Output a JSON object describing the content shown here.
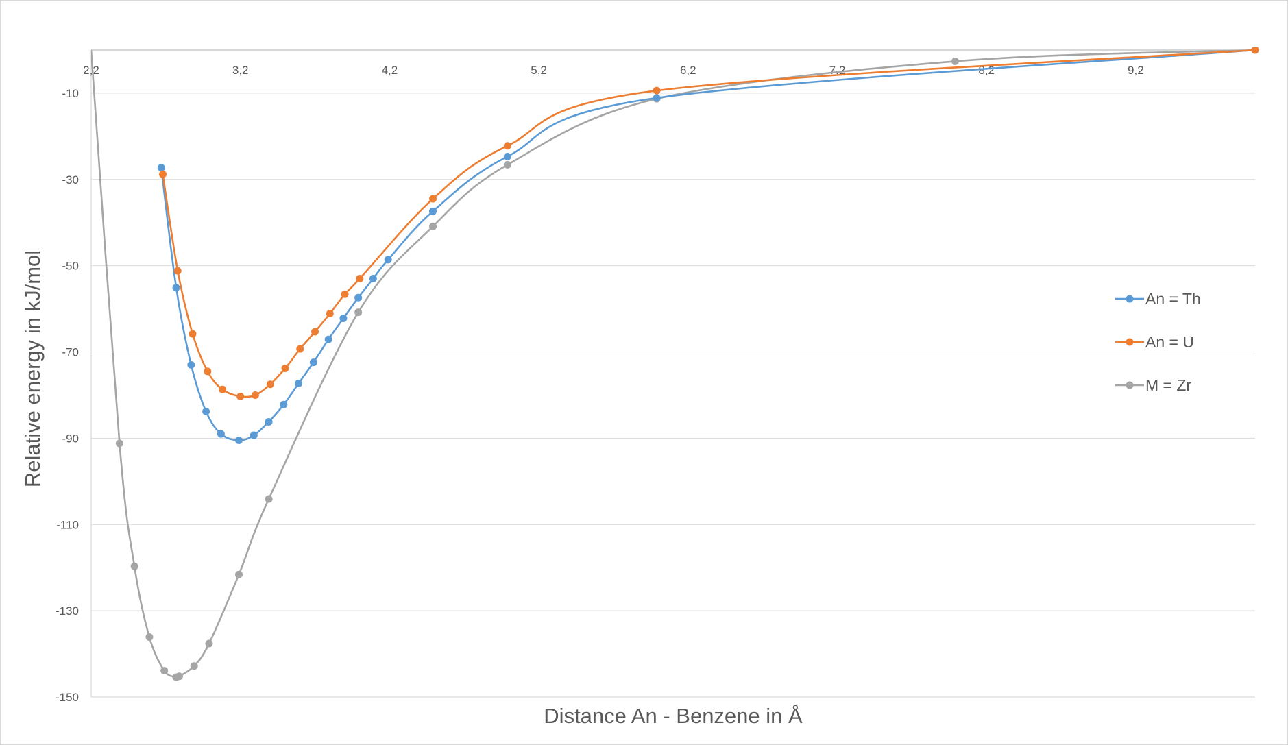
{
  "chart_data": {
    "type": "line",
    "title": "",
    "xlabel": "Distance An - Benzene in Å",
    "ylabel": "Relative energy in kJ/mol",
    "xlim": [
      2.2,
      10.0
    ],
    "ylim": [
      -150,
      0
    ],
    "x_tick_labels": [
      "2,2",
      "3,2",
      "4,2",
      "5,2",
      "6,2",
      "7,2",
      "8,2",
      "9,2"
    ],
    "x_ticks": [
      2.2,
      3.2,
      4.2,
      5.2,
      6.2,
      7.2,
      8.2,
      9.2
    ],
    "y_tick_labels": [
      "-10",
      "-30",
      "-50",
      "-70",
      "-90",
      "-110",
      "-130",
      "-150"
    ],
    "y_ticks": [
      -10,
      -30,
      -50,
      -70,
      -90,
      -110,
      -130,
      -150
    ],
    "grid": true,
    "legend_position": "right",
    "series": [
      {
        "name": "An = Th",
        "color": "#5b9bd5",
        "points": [
          [
            2.67,
            -27.3
          ],
          [
            2.77,
            -55.1
          ],
          [
            2.87,
            -73.0
          ],
          [
            2.97,
            -83.8
          ],
          [
            3.07,
            -89.0
          ],
          [
            3.19,
            -90.5
          ],
          [
            3.29,
            -89.3
          ],
          [
            3.39,
            -86.2
          ],
          [
            3.49,
            -82.2
          ],
          [
            3.59,
            -77.3
          ],
          [
            3.69,
            -72.4
          ],
          [
            3.79,
            -67.1
          ],
          [
            3.89,
            -62.2
          ],
          [
            3.99,
            -57.4
          ],
          [
            4.09,
            -53.0
          ],
          [
            4.19,
            -48.6
          ],
          [
            4.49,
            -37.4
          ],
          [
            4.99,
            -24.7
          ],
          [
            5.99,
            -11.1
          ],
          [
            10.0,
            0.0
          ]
        ]
      },
      {
        "name": "An = U",
        "color": "#ed7d31",
        "points": [
          [
            2.68,
            -28.8
          ],
          [
            2.78,
            -51.2
          ],
          [
            2.88,
            -65.8
          ],
          [
            2.98,
            -74.5
          ],
          [
            3.08,
            -78.7
          ],
          [
            3.2,
            -80.3
          ],
          [
            3.3,
            -80.0
          ],
          [
            3.4,
            -77.5
          ],
          [
            3.5,
            -73.8
          ],
          [
            3.6,
            -69.3
          ],
          [
            3.7,
            -65.3
          ],
          [
            3.8,
            -61.1
          ],
          [
            3.9,
            -56.6
          ],
          [
            4.0,
            -53.0
          ],
          [
            4.49,
            -34.5
          ],
          [
            4.99,
            -22.2
          ],
          [
            5.99,
            -9.4
          ],
          [
            10.0,
            0.0
          ]
        ]
      },
      {
        "name": "M = Zr",
        "color": "#a5a5a5",
        "points": [
          [
            2.2,
            0.0
          ],
          [
            2.39,
            -91.2
          ],
          [
            2.49,
            -119.7
          ],
          [
            2.59,
            -136.1
          ],
          [
            2.69,
            -143.9
          ],
          [
            2.77,
            -145.4
          ],
          [
            2.79,
            -145.2
          ],
          [
            2.89,
            -142.8
          ],
          [
            2.99,
            -137.6
          ],
          [
            3.19,
            -121.6
          ],
          [
            3.39,
            -104.1
          ],
          [
            3.99,
            -60.8
          ],
          [
            4.49,
            -40.9
          ],
          [
            4.99,
            -26.6
          ],
          [
            5.99,
            -11.3
          ],
          [
            7.99,
            -2.6
          ],
          [
            10.0,
            0.0
          ]
        ]
      }
    ]
  }
}
